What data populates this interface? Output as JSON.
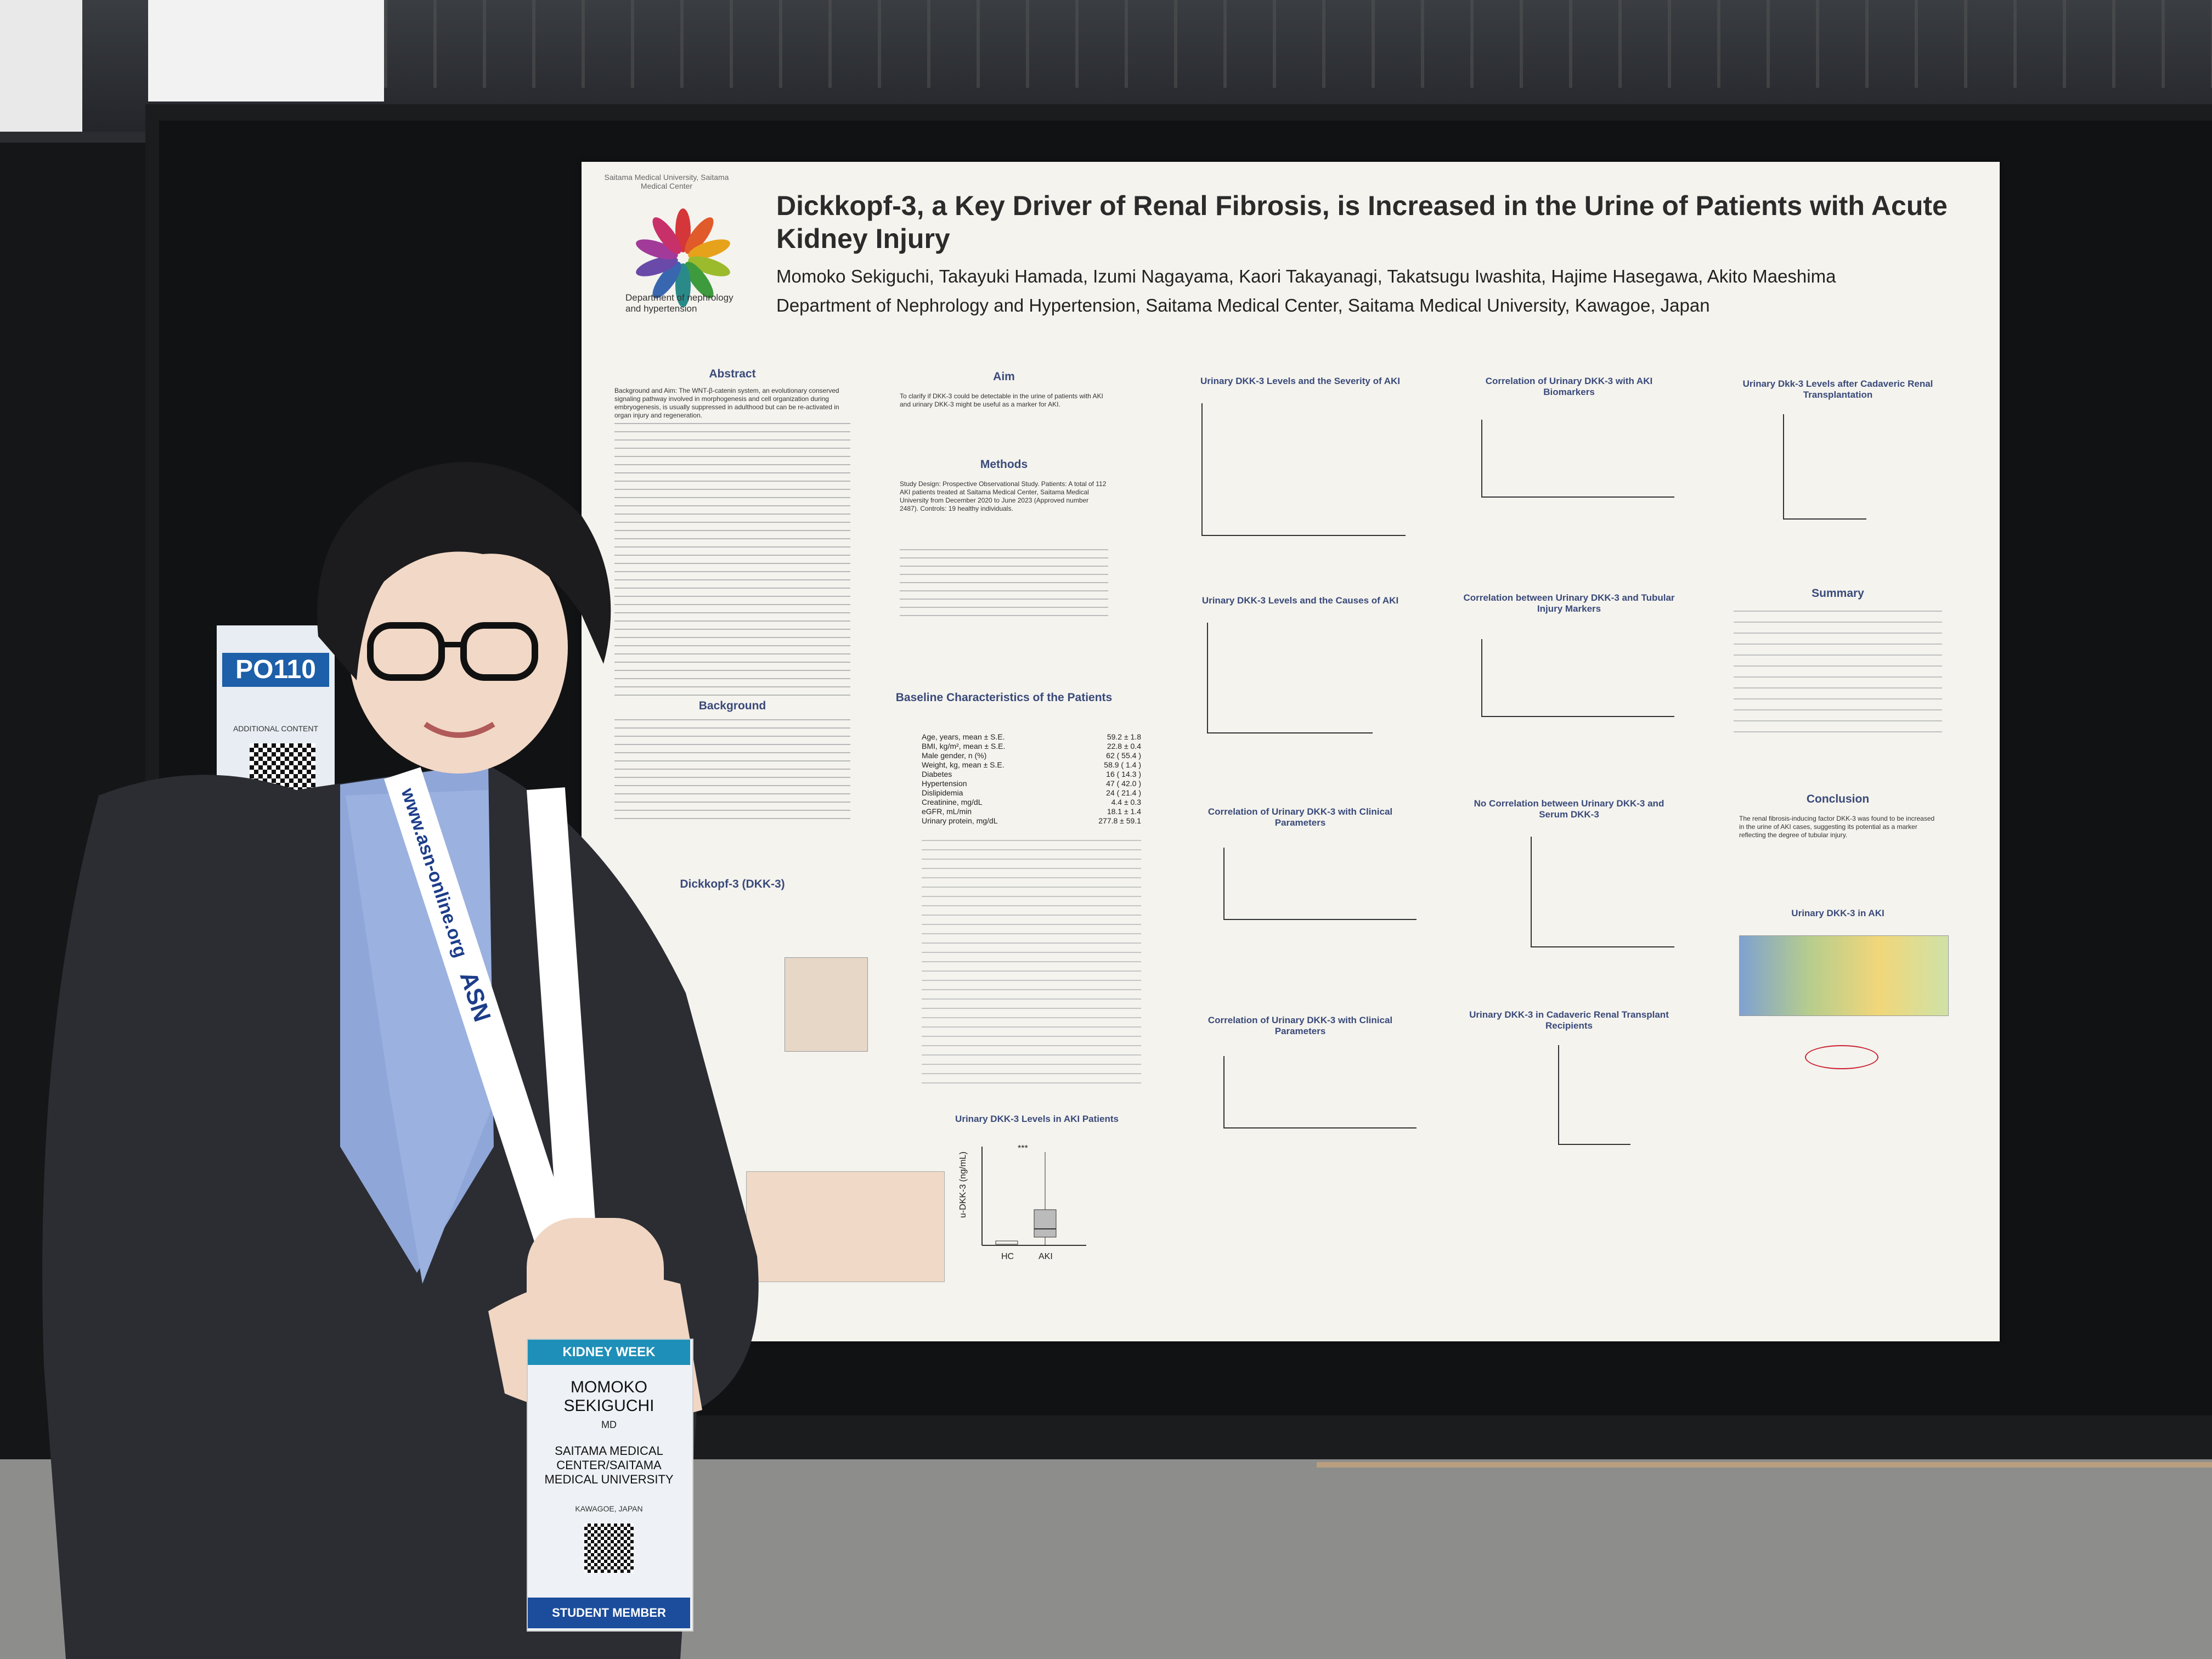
{
  "poster": {
    "title": "Dickkopf-3, a Key Driver of Renal Fibrosis, is Increased in the Urine of Patients with Acute Kidney Injury",
    "authors": "Momoko Sekiguchi, Takayuki Hamada, Izumi Nagayama, Kaori Takayanagi, Takatsugu Iwashita, Hajime Hasegawa, Akito Maeshima",
    "affiliation": "Department of Nephrology and Hypertension, Saitama Medical Center, Saitama Medical University, Kawagoe, Japan",
    "logo_text": "Saitama Medical University, Saitama Medical Center",
    "dept": "Department of nephrology and hypertension",
    "sections": {
      "abstract": "Abstract",
      "aim": "Aim",
      "methods": "Methods",
      "background": "Background",
      "dkk3": "Dickkopf-3 (DKK-3)",
      "baseline": "Baseline Characteristics of the Patients",
      "summary": "Summary",
      "conclusion": "Conclusion",
      "dkk3_aki": "Urinary DKK-3 in AKI"
    },
    "aim_text": "To clarify if DKK-3 could be detectable in the urine of patients with AKI and urinary DKK-3 might be useful as a marker for AKI.",
    "methods_text": "Study Design: Prospective Observational Study. Patients: A total of 112 AKI patients treated at Saitama Medical Center, Saitama Medical University from December 2020 to June 2023 (Approved number 2487). Controls: 19 healthy individuals.",
    "abstract_text": "Background and Aim: The WNT-β-catenin system, an evolutionary conserved signaling pathway involved in morphogenesis and cell organization during embryogenesis, is usually suppressed in adulthood but can be re-activated in organ injury and regeneration.",
    "conclusion_text": "The renal fibrosis-inducing factor DKK-3 was found to be increased in the urine of AKI cases, suggesting its potential as a marker reflecting the degree of tubular injury.",
    "baseline_rows": [
      {
        "label": "Age, years, mean ± S.E.",
        "value": "59.2 ± 1.8"
      },
      {
        "label": "BMI, kg/m², mean ± S.E.",
        "value": "22.8 ± 0.4"
      },
      {
        "label": "Male gender, n (%)",
        "value": "62 ( 55.4 )"
      },
      {
        "label": "Weight, kg, mean ± S.E.",
        "value": "58.9 ( 1.4 )"
      },
      {
        "label": "Diabetes",
        "value": "16 ( 14.3 )"
      },
      {
        "label": "Hypertension",
        "value": "47 ( 42.0 )"
      },
      {
        "label": "Dislipidemia",
        "value": "24 ( 21.4 )"
      },
      {
        "label": "Creatinine, mg/dL",
        "value": "4.4 ± 0.3"
      },
      {
        "label": "eGFR, mL/min",
        "value": "18.1 ± 1.4"
      },
      {
        "label": "Urinary protein, mg/dL",
        "value": "277.8 ± 59.1"
      }
    ],
    "chart_titles": [
      "Urinary DKK-3 Levels and the Severity of AKI",
      "Correlation of Urinary DKK-3 with AKI Biomarkers",
      "Urinary Dkk-3 Levels after Cadaveric Renal Transplantation",
      "Urinary DKK-3 Levels and the Causes of AKI",
      "Correlation between Urinary DKK-3 and Tubular Injury Markers",
      "Correlation of Urinary DKK-3 with Clinical Parameters",
      "No Correlation between Urinary DKK-3 and Serum DKK-3",
      "Urinary DKK-3 in Cadaveric Renal Transplant Recipients",
      "Urinary DKK-3 Levels in AKI Patients"
    ],
    "aki_chart": {
      "ylabel": "u-DKK-3 (ng/mL)",
      "categories": [
        "HC",
        "AKI"
      ],
      "sig": "***"
    }
  },
  "poster_board": {
    "id": "PO110",
    "note": "ADDITIONAL CONTENT"
  },
  "badge": {
    "name": "MOMOKO SEKIGUCHI",
    "degree": "MD",
    "org": "SAITAMA MEDICAL CENTER/SAITAMA MEDICAL UNIVERSITY",
    "location": "KAWAGOE, JAPAN",
    "role": "STUDENT MEMBER",
    "event": "KIDNEY WEEK"
  },
  "lanyard": {
    "text": "www.asn-online.org",
    "brand": "ASN"
  },
  "colors": {
    "poster_bg": "#f4f3ee",
    "heading": "#3a4a7a",
    "lanyard": "#ffffff",
    "jacket": "#2b2d33",
    "shirt": "#8fa6d8"
  }
}
